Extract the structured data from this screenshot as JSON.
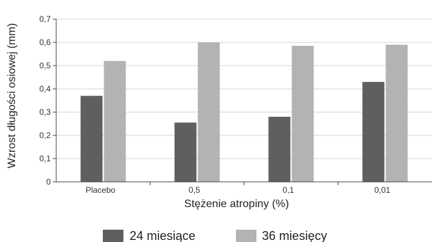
{
  "chart_data": {
    "type": "bar",
    "categories": [
      "Placebo",
      "0,5",
      "0,1",
      "0,01"
    ],
    "series": [
      {
        "name": "24 miesiące",
        "color": "#5f5f5f",
        "values": [
          0.37,
          0.255,
          0.28,
          0.43
        ]
      },
      {
        "name": "36 miesięcy",
        "color": "#b3b3b3",
        "values": [
          0.52,
          0.6,
          0.585,
          0.59
        ]
      }
    ],
    "xlabel": "Stężenie atropiny (%)",
    "ylabel": "Wzrost długości osiowej (mm)",
    "ylim": [
      0,
      0.7
    ],
    "yticks": [
      "0",
      "0,1",
      "0,2",
      "0,3",
      "0,4",
      "0,5",
      "0,6",
      "0,7"
    ],
    "grid": true,
    "legend_position": "bottom"
  }
}
